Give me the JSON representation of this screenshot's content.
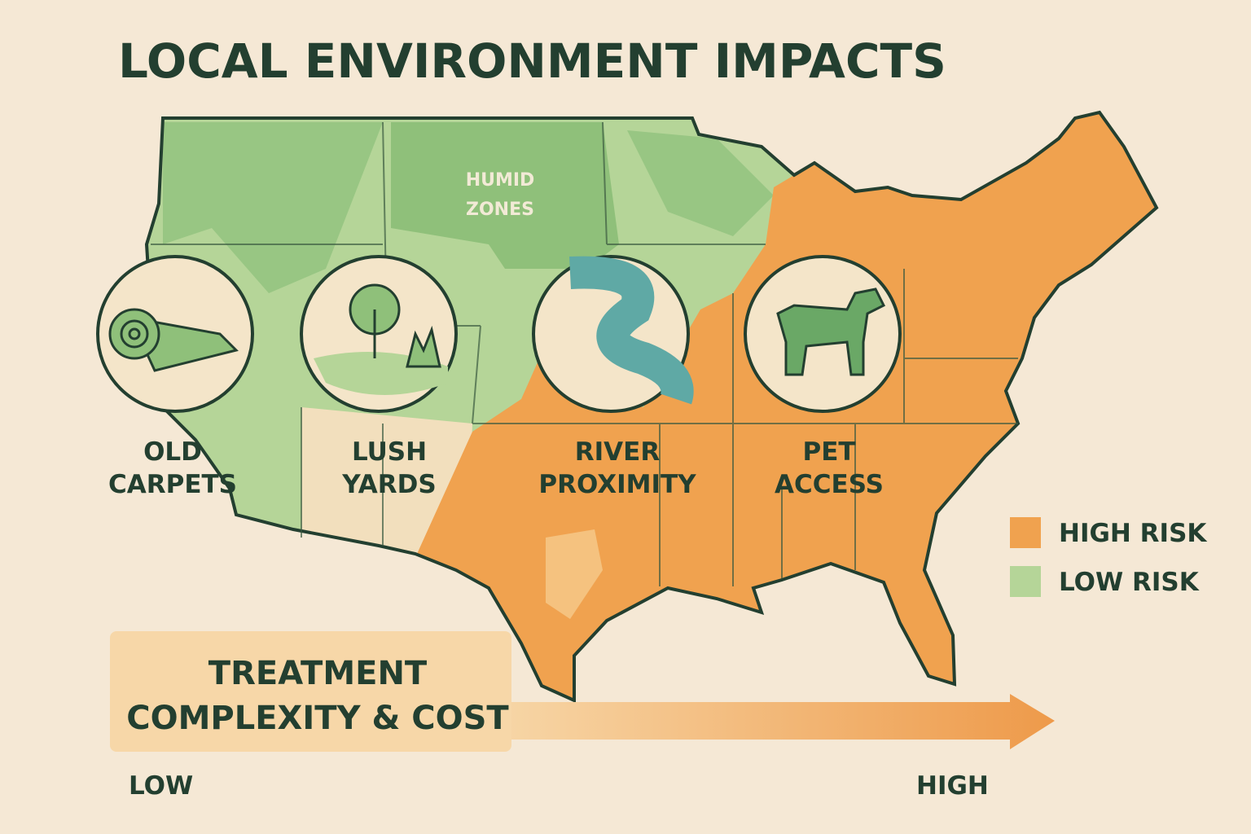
{
  "title": "LOCAL ENVIRONMENT IMPACTS",
  "map": {
    "region_label": [
      "HUMID",
      "ZONES"
    ]
  },
  "factors": [
    {
      "label": [
        "OLD",
        "CARPETS"
      ]
    },
    {
      "label": [
        "LUSH",
        "YARDS"
      ]
    },
    {
      "label": [
        "RIVER",
        "PROXIMITY"
      ]
    },
    {
      "label": [
        "PET",
        "ACCESS"
      ]
    }
  ],
  "legend": [
    {
      "label": "HIGH RISK",
      "color": "#f0a24f"
    },
    {
      "label": "LOW RISK",
      "color": "#b5d598"
    }
  ],
  "scale": {
    "title": [
      "TREATMENT",
      "COMPLEXITY & COST"
    ],
    "low": "LOW",
    "high": "HIGH"
  }
}
